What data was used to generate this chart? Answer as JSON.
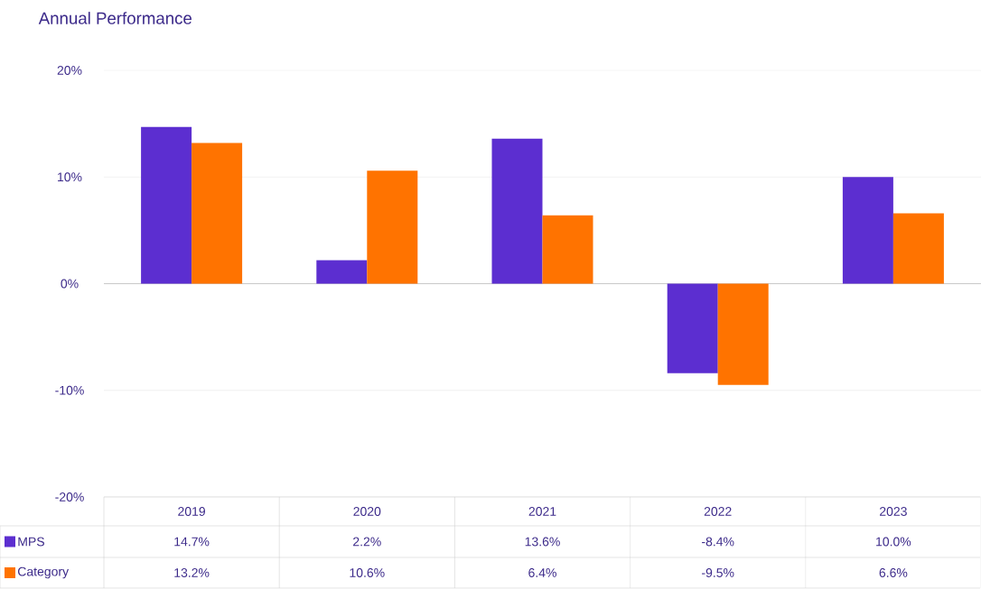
{
  "chart_data": {
    "type": "bar",
    "title": "Annual Performance",
    "categories": [
      "2019",
      "2020",
      "2021",
      "2022",
      "2023"
    ],
    "series": [
      {
        "name": "MPS",
        "color": "#5c2ed0",
        "values": [
          14.7,
          2.2,
          13.6,
          -8.4,
          10.0
        ],
        "value_labels": [
          "14.7%",
          "2.2%",
          "13.6%",
          "-8.4%",
          "10.0%"
        ]
      },
      {
        "name": "Category",
        "color": "#ff7300",
        "values": [
          13.2,
          10.6,
          6.4,
          -9.5,
          6.6
        ],
        "value_labels": [
          "13.2%",
          "10.6%",
          "6.4%",
          "-9.5%",
          "6.6%"
        ]
      }
    ],
    "ylim": [
      -20,
      20
    ],
    "yticks": [
      {
        "value": -20,
        "label": "-20%"
      },
      {
        "value": -10,
        "label": "-10%"
      },
      {
        "value": 0,
        "label": "0%"
      },
      {
        "value": 10,
        "label": "10%"
      },
      {
        "value": 20,
        "label": "20%"
      }
    ],
    "grid": "y",
    "legend": "bottom"
  }
}
